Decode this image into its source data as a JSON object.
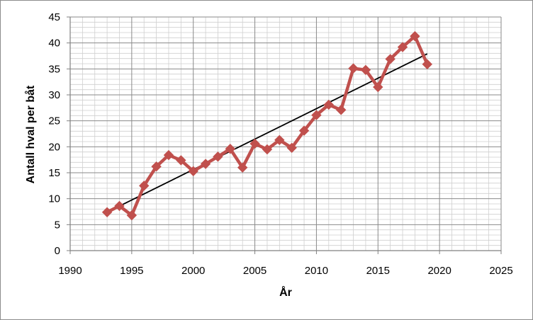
{
  "chart_data": {
    "type": "line",
    "title": "",
    "xlabel": "År",
    "ylabel": "Antall hval per båt",
    "xlim": [
      1990,
      2025
    ],
    "ylim": [
      0,
      45
    ],
    "x_major_step": 5,
    "x_minor_step": 1,
    "y_major_step": 5,
    "y_minor_step": 1,
    "grid": true,
    "legend": "none",
    "x_ticks": [
      "1990",
      "1995",
      "2000",
      "2005",
      "2010",
      "2015",
      "2020",
      "2025"
    ],
    "y_ticks": [
      "0",
      "5",
      "10",
      "15",
      "20",
      "25",
      "30",
      "35",
      "40",
      "45"
    ],
    "colors": {
      "series": "#c0504d",
      "trend": "#000000",
      "grid": "#b3b3b3"
    },
    "series": [
      {
        "x": [
          1993,
          1994,
          1995,
          1996,
          1997,
          1998,
          1999,
          2000,
          2001,
          2002,
          2003,
          2004,
          2005,
          2006,
          2007,
          2008,
          2009,
          2010,
          2011,
          2012,
          2013,
          2014,
          2015,
          2016,
          2017,
          2018,
          2019
        ],
        "y": [
          7.4,
          8.6,
          6.8,
          12.5,
          16.2,
          18.4,
          17.4,
          15.3,
          16.7,
          18.1,
          19.6,
          16.0,
          20.6,
          19.5,
          21.3,
          19.8,
          23.1,
          26.1,
          28.1,
          27.1,
          35.1,
          34.8,
          31.5,
          36.9,
          39.2,
          41.3,
          35.9
        ],
        "marker": "diamond"
      }
    ],
    "trendline": {
      "type": "linear",
      "x": [
        1993,
        2019
      ],
      "y": [
        7.4,
        37.9
      ]
    }
  }
}
